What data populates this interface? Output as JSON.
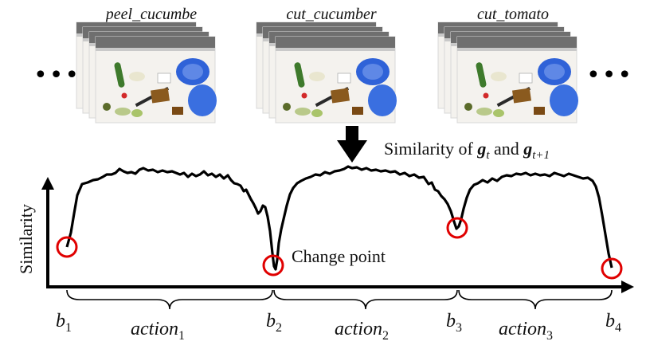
{
  "groups": [
    {
      "label": "peel_cucumbe"
    },
    {
      "label": "cut_cucumber"
    },
    {
      "label": "cut_tomato"
    }
  ],
  "ellipsis": "•••",
  "similarity_caption": {
    "prefix": "Similarity of ",
    "g": "g",
    "sub1": "t",
    "and": " and ",
    "sub2": "t+1"
  },
  "y_axis_label": "Similarity",
  "change_point_label": "Change point",
  "boundaries": [
    {
      "b": "b",
      "sub": "1"
    },
    {
      "b": "b",
      "sub": "2"
    },
    {
      "b": "b",
      "sub": "3"
    },
    {
      "b": "b",
      "sub": "4"
    }
  ],
  "actions": [
    {
      "name": "action",
      "sub": "1"
    },
    {
      "name": "action",
      "sub": "2"
    },
    {
      "name": "action",
      "sub": "3"
    }
  ],
  "colors": {
    "curve": "#000000",
    "circle": "#e00000",
    "counter": "#f4f2ee",
    "tray": "#8a5a1e",
    "bowl": "#2f62d8",
    "green": "#3e7a2c"
  }
}
